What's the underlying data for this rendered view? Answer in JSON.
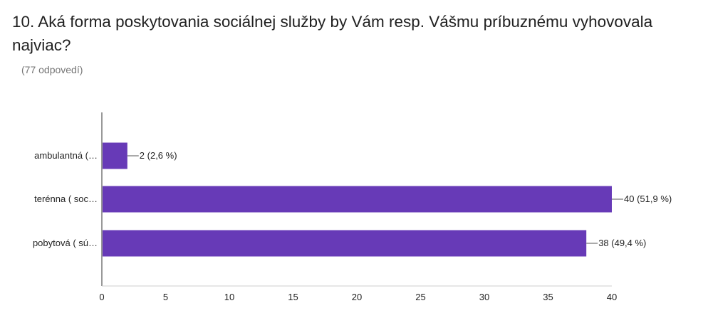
{
  "title": "10. Aká forma poskytovania sociálnej služby by Vám resp. Vášmu príbuznému vyhovovala najviac?",
  "subtitle": "(77 odpovedí)",
  "chart_data": {
    "type": "bar",
    "orientation": "horizontal",
    "title": "10. Aká forma poskytovania sociálnej služby by Vám resp. Vášmu príbuznému vyhovovala najviac?",
    "categories": [
      "ambulantná (…",
      "terénna ( soc…",
      "pobytová ( sú…"
    ],
    "values": [
      2,
      40,
      38
    ],
    "data_labels": [
      "2 (2,6 %)",
      "40 (51,9 %)",
      "38 (49,4 %)"
    ],
    "xlim": [
      0,
      40
    ],
    "xticks": [
      "0",
      "5",
      "10",
      "15",
      "20",
      "25",
      "30",
      "35",
      "40"
    ],
    "bar_color": "#673ab7",
    "grid": false,
    "legend": "none"
  }
}
